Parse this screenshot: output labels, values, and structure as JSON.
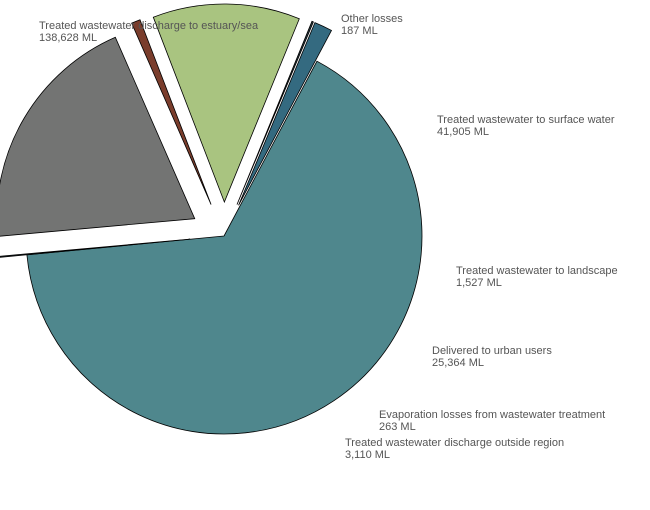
{
  "chart_data": {
    "type": "pie",
    "title": "",
    "unit": "ML",
    "legend": "none",
    "slices": [
      {
        "label": "Treated wastewater discharge to estuary/sea",
        "value": 138628,
        "value_label": "138,628 ML",
        "color": "#4f878d"
      },
      {
        "label": "Other losses",
        "value": 187,
        "value_label": "187 ML",
        "color": "#2f3f44"
      },
      {
        "label": "Treated wastewater to surface water",
        "value": 41905,
        "value_label": "41,905 ML",
        "color": "#737473"
      },
      {
        "label": "Treated wastewater to landscape",
        "value": 1527,
        "value_label": "1,527 ML",
        "color": "#7a3d2c"
      },
      {
        "label": "Delivered to urban users",
        "value": 25364,
        "value_label": "25,364 ML",
        "color": "#a9c480"
      },
      {
        "label": "Evaporation losses from wastewater treatment",
        "value": 263,
        "value_label": "263 ML",
        "color": "#2e3f45"
      },
      {
        "label": "Treated wastewater discharge outside region",
        "value": 3110,
        "value_label": "3,110 ML",
        "color": "#346a80"
      }
    ]
  }
}
